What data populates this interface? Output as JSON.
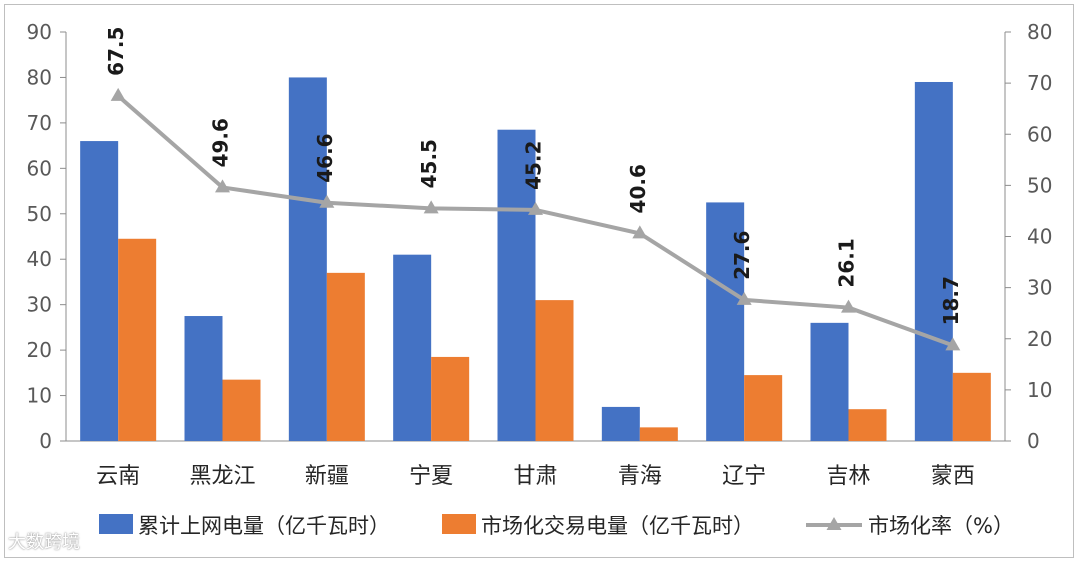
{
  "chart_data": {
    "type": "bar",
    "categories": [
      "云南",
      "黑龙江",
      "新疆",
      "宁夏",
      "甘肃",
      "青海",
      "辽宁",
      "吉林",
      "蒙西"
    ],
    "series": [
      {
        "name": "累计上网电量（亿千瓦时）",
        "type": "bar",
        "axis": "left",
        "color": "#4472C4",
        "values": [
          66,
          27.5,
          80,
          41,
          68.5,
          7.5,
          52.5,
          26,
          79
        ]
      },
      {
        "name": "市场化交易电量（亿千瓦时）",
        "type": "bar",
        "axis": "left",
        "color": "#ED7D31",
        "values": [
          44.5,
          13.5,
          37,
          18.5,
          31,
          3,
          14.5,
          7,
          15
        ]
      },
      {
        "name": "市场化率（%）",
        "type": "line",
        "axis": "right",
        "color": "#A5A5A5",
        "values": [
          67.5,
          49.6,
          46.6,
          45.5,
          45.2,
          40.6,
          27.6,
          26.1,
          18.7
        ],
        "labels": [
          "67.5",
          "49.6",
          "46.6",
          "45.5",
          "45.2",
          "40.6",
          "27.6",
          "26.1",
          "18.7"
        ]
      }
    ],
    "y_left": {
      "min": 0,
      "max": 90,
      "ticks": [
        "0",
        "10",
        "20",
        "30",
        "40",
        "50",
        "60",
        "70",
        "80",
        "90"
      ]
    },
    "y_right": {
      "min": 0,
      "max": 80,
      "ticks": [
        "0",
        "10",
        "20",
        "30",
        "40",
        "50",
        "60",
        "70",
        "80"
      ]
    },
    "grid": false,
    "legend_position": "bottom"
  },
  "watermark": "大数跨境"
}
